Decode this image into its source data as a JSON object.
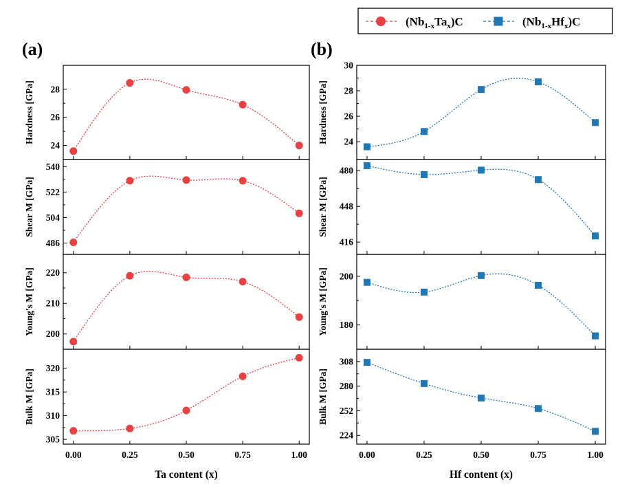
{
  "legend": {
    "entries": [
      {
        "prefix": "(Nb",
        "sub": "1-x",
        "mid": "Ta",
        "sub2": "x",
        "suffix": ")C",
        "color": "#e84142",
        "marker": "circle"
      },
      {
        "prefix": "(Nb",
        "sub": "1-x",
        "mid": "Hf",
        "sub2": "x",
        "suffix": ")C",
        "color": "#1f77b4",
        "marker": "square"
      }
    ]
  },
  "panels": [
    {
      "label": "(a)",
      "xlabel": "Ta content (x)"
    },
    {
      "label": "(b)",
      "xlabel": "Hf content (x)"
    }
  ],
  "chart_data": [
    {
      "type": "line",
      "panel": "(a)",
      "color": "#e84142",
      "marker": "circle",
      "x": [
        0.0,
        0.25,
        0.5,
        0.75,
        1.0
      ],
      "xticks": [
        "0.00",
        "0.25",
        "0.50",
        "0.75",
        "1.00"
      ],
      "xlim": [
        -0.045,
        1.045
      ],
      "xlabel": "Ta content (x)",
      "subplots": [
        {
          "ylabel": "Hardness [GPa]",
          "values": [
            23.6,
            28.45,
            27.95,
            26.9,
            24.0
          ],
          "ylim": [
            23.0,
            29.7
          ],
          "yticks": [
            24,
            26,
            28
          ]
        },
        {
          "ylabel": "Shear M [GPa]",
          "values": [
            486.5,
            530.0,
            530.5,
            530.0,
            507.0
          ],
          "ylim": [
            478.0,
            545.0
          ],
          "yticks": [
            486,
            504,
            522,
            540
          ]
        },
        {
          "ylabel": "Young's M [GPa]",
          "values": [
            197.5,
            219.0,
            218.5,
            217.1,
            205.5
          ],
          "ylim": [
            195.0,
            226.0
          ],
          "yticks": [
            200,
            210,
            220
          ]
        },
        {
          "ylabel": "Bulk M [GPa]",
          "values": [
            306.8,
            307.3,
            311.1,
            318.3,
            322.2
          ],
          "ylim": [
            304.0,
            324.0
          ],
          "yticks": [
            305,
            310,
            315,
            320
          ]
        }
      ]
    },
    {
      "type": "line",
      "panel": "(b)",
      "color": "#1f77b4",
      "marker": "square",
      "x": [
        0.0,
        0.25,
        0.5,
        0.75,
        1.0
      ],
      "xticks": [
        "0.00",
        "0.25",
        "0.50",
        "0.75",
        "1.00"
      ],
      "xlim": [
        -0.045,
        1.045
      ],
      "xlabel": "Hf content (x)",
      "subplots": [
        {
          "ylabel": "Hardness [GPa]",
          "values": [
            23.6,
            24.8,
            28.1,
            28.7,
            25.5
          ],
          "ylim": [
            22.6,
            30.0
          ],
          "yticks": [
            24,
            26,
            28,
            30
          ]
        },
        {
          "ylabel": "Shear M [GPa]",
          "values": [
            484.5,
            476.5,
            480.5,
            472.0,
            421.5
          ],
          "ylim": [
            405.0,
            490.0
          ],
          "yticks": [
            416,
            448,
            480
          ]
        },
        {
          "ylabel": "Young's M [GPa]",
          "values": [
            197.5,
            193.5,
            200.3,
            196.3,
            175.5
          ],
          "ylim": [
            170.0,
            209.0
          ],
          "yticks": [
            180,
            200
          ]
        },
        {
          "ylabel": "Bulk M [GPa]",
          "values": [
            307.0,
            283.0,
            266.5,
            254.5,
            228.5
          ],
          "ylim": [
            214.0,
            322.0
          ],
          "yticks": [
            224,
            252,
            280,
            308
          ]
        }
      ]
    }
  ]
}
